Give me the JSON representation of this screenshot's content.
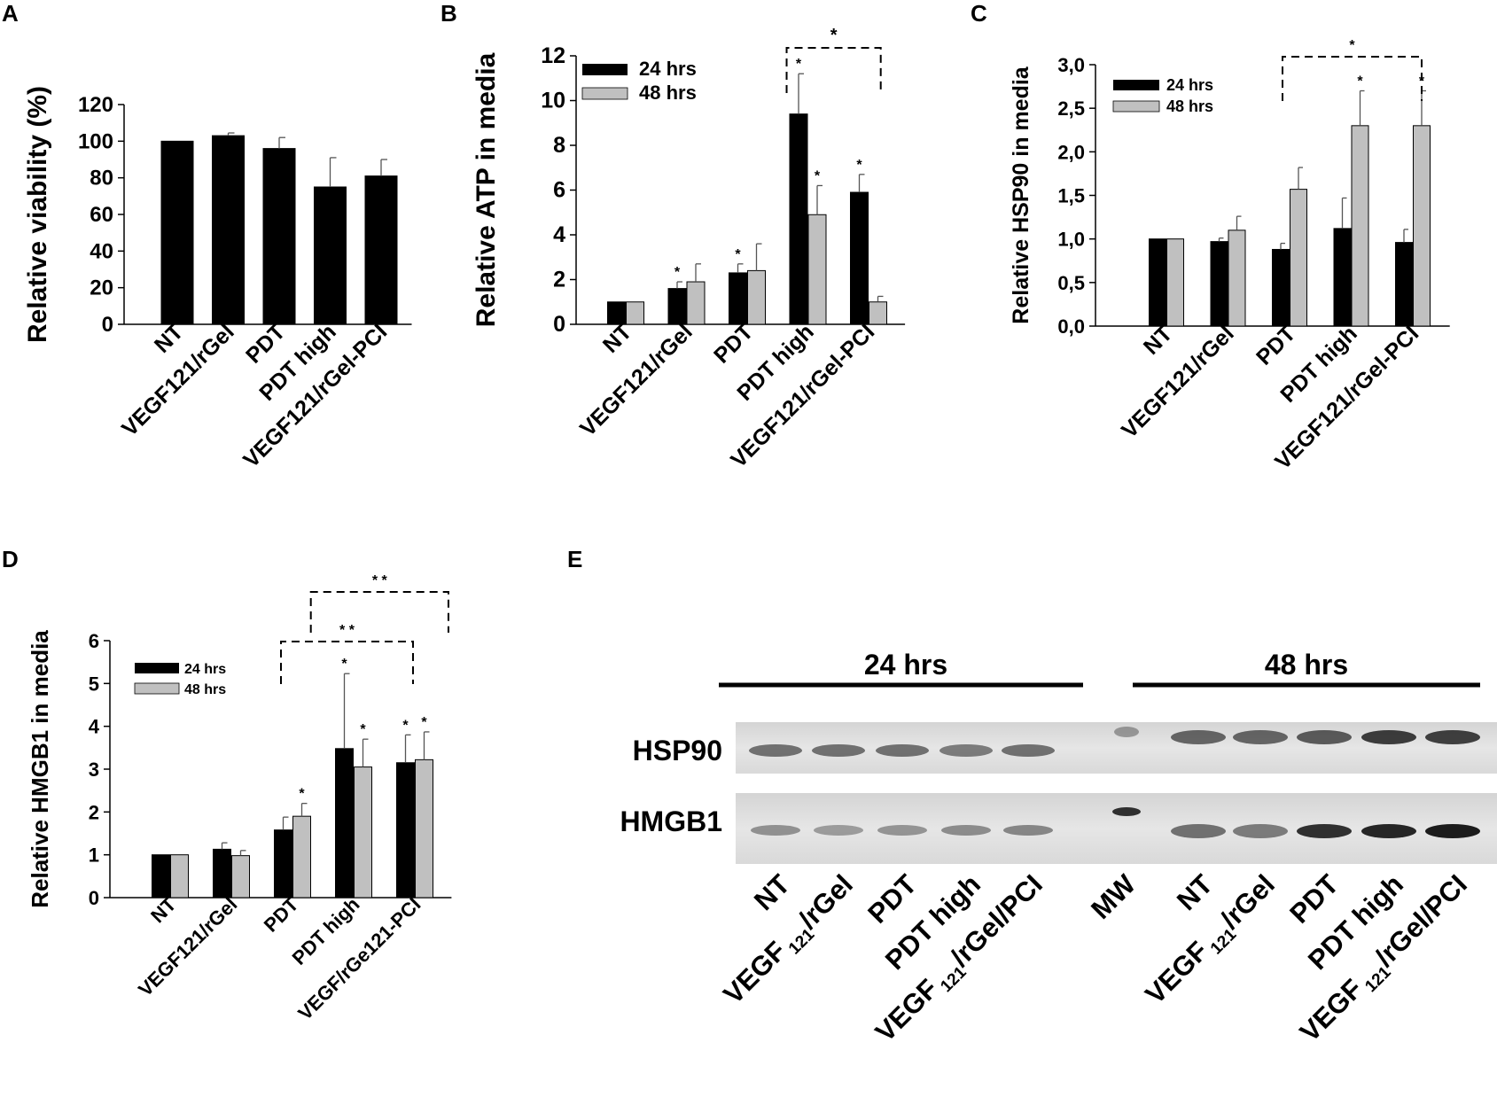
{
  "colors": {
    "series_24": "#000000",
    "series_48": "#c0c0c0",
    "axis": "#000000"
  },
  "chart_data": [
    {
      "panel": "A",
      "type": "bar",
      "ylabel": "Relative viability (%)",
      "ylim": [
        0,
        120
      ],
      "yticks": [
        "0",
        "20",
        "40",
        "60",
        "80",
        "100",
        "120"
      ],
      "categories": [
        "NT",
        "VEGF121/rGel",
        "PDT",
        "PDT high",
        "VEGF121/rGel-PCI"
      ],
      "series": [
        {
          "values": [
            100,
            103,
            96,
            75,
            81
          ],
          "errors": [
            0,
            1.5,
            6,
            16,
            9
          ]
        }
      ],
      "grid": false
    },
    {
      "panel": "B",
      "type": "bar",
      "ylabel": "Relative ATP in media",
      "ylim": [
        0,
        12
      ],
      "yticks": [
        "0",
        "2",
        "4",
        "6",
        "8",
        "10",
        "12"
      ],
      "categories": [
        "NT",
        "VEGF121/rGel",
        "PDT",
        "PDT high",
        "VEGF121/rGel-PCI"
      ],
      "series": [
        {
          "name": "24 hrs",
          "values": [
            1,
            1.6,
            2.3,
            9.4,
            5.9
          ],
          "errors": [
            0,
            0.3,
            0.4,
            1.8,
            0.8
          ]
        },
        {
          "name": "48 hrs",
          "values": [
            1,
            1.9,
            2.4,
            4.9,
            1.0
          ],
          "errors": [
            0,
            0.8,
            1.2,
            1.3,
            0.25
          ]
        }
      ],
      "annotations": {
        "stars": [
          [
            1,
            0
          ],
          [
            2,
            0
          ],
          [
            3,
            0
          ],
          [
            3,
            1
          ],
          [
            4,
            0
          ]
        ],
        "brackets": [
          {
            "from": 3,
            "to": 4,
            "label": "*"
          }
        ]
      },
      "legend": "top-left",
      "grid": false
    },
    {
      "panel": "C",
      "type": "bar",
      "ylabel": "Relative HSP90 in media",
      "ylim": [
        0,
        3
      ],
      "yticks": [
        "0,0",
        "0,5",
        "1,0",
        "1,5",
        "2,0",
        "2,5",
        "3,0"
      ],
      "categories": [
        "NT",
        "VEGF121/rGel",
        "PDT",
        "PDT high",
        "VEGF121/rGel-PCI"
      ],
      "series": [
        {
          "name": "24 hrs",
          "values": [
            1,
            0.97,
            0.88,
            1.12,
            0.96
          ],
          "errors": [
            0,
            0.04,
            0.07,
            0.35,
            0.15
          ]
        },
        {
          "name": "48 hrs",
          "values": [
            1,
            1.1,
            1.57,
            2.3,
            2.3
          ],
          "errors": [
            0,
            0.16,
            0.25,
            0.4,
            0.4
          ]
        }
      ],
      "annotations": {
        "stars": [
          [
            3,
            1
          ],
          [
            4,
            1
          ]
        ],
        "brackets": [
          {
            "from": 2,
            "to": 4,
            "label": "*"
          }
        ]
      },
      "legend": "top-left",
      "grid": false
    },
    {
      "panel": "D",
      "type": "bar",
      "ylabel": "Relative HMGB1 in media",
      "ylim": [
        0,
        6
      ],
      "yticks": [
        "0",
        "1",
        "2",
        "3",
        "4",
        "5",
        "6"
      ],
      "categories": [
        "NT",
        "VEGF121/rGel",
        "PDT",
        "PDT high",
        "VEGF/rGe121-PCI"
      ],
      "series": [
        {
          "name": "24 hrs",
          "values": [
            1,
            1.13,
            1.58,
            3.48,
            3.15
          ],
          "errors": [
            0,
            0.15,
            0.3,
            1.75,
            0.65
          ]
        },
        {
          "name": "48 hrs",
          "values": [
            1,
            0.98,
            1.9,
            3.05,
            3.22
          ],
          "errors": [
            0,
            0.12,
            0.3,
            0.65,
            0.65
          ]
        }
      ],
      "annotations": {
        "stars": [
          [
            2,
            1
          ],
          [
            3,
            0
          ],
          [
            3,
            1
          ],
          [
            4,
            0
          ],
          [
            4,
            1
          ]
        ],
        "brackets": [
          {
            "from": 2,
            "to": 4,
            "label": "* *"
          },
          {
            "from": 3,
            "to": 5,
            "label": "* *"
          }
        ]
      },
      "legend": "top-left",
      "grid": false
    }
  ],
  "blot": {
    "panel": "E",
    "timepoints": [
      "24 hrs",
      "48 hrs"
    ],
    "rows": [
      "HSP90",
      "HMGB1"
    ],
    "lanes_24": [
      {
        "main": "NT",
        "sub": "",
        "tail": ""
      },
      {
        "main": "VEGF",
        "sub": "121",
        "tail": "/rGel"
      },
      {
        "main": "PDT",
        "sub": "",
        "tail": ""
      },
      {
        "main": "PDT high",
        "sub": "",
        "tail": ""
      },
      {
        "main": "VEGF",
        "sub": "121",
        "tail": "/rGel/PCI"
      }
    ],
    "marker_lane": "MW",
    "lanes_48": [
      {
        "main": "NT",
        "sub": "",
        "tail": ""
      },
      {
        "main": "VEGF",
        "sub": "121",
        "tail": "/rGel"
      },
      {
        "main": "PDT",
        "sub": "",
        "tail": ""
      },
      {
        "main": "PDT high",
        "sub": "",
        "tail": ""
      },
      {
        "main": "VEGF",
        "sub": "121",
        "tail": "/rGel/PCI"
      }
    ]
  }
}
